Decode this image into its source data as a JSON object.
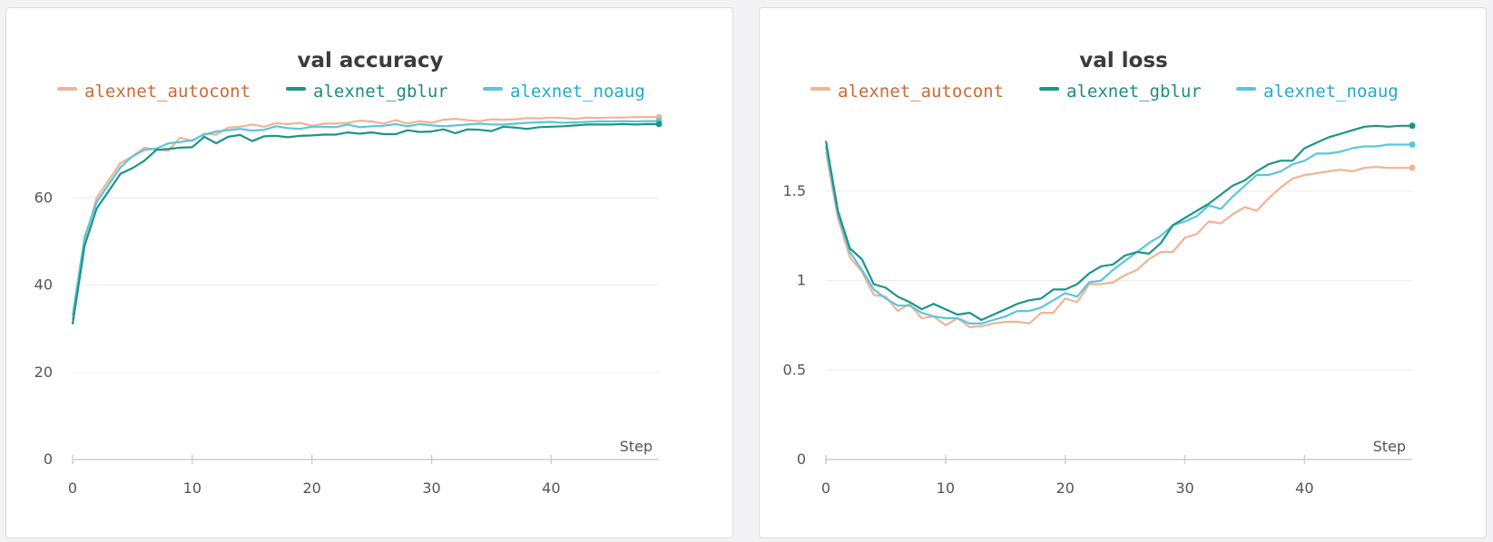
{
  "colors": {
    "alexnet_autocont": "#f2b394",
    "alexnet_gblur": "#1e9584",
    "alexnet_noaug": "#5ac6dd",
    "legend_text_autocont": "#cc6a33",
    "legend_text_gblur": "#1e8c7c",
    "legend_text_noaug": "#26a9cc",
    "grid": "#ececee",
    "axis": "#cfcfd4"
  },
  "chart_data": [
    {
      "type": "line",
      "title": "val accuracy",
      "xlabel": "Step",
      "ylabel": "",
      "xlim": [
        0,
        49
      ],
      "ylim": [
        0,
        80
      ],
      "x_ticks": [
        0,
        10,
        20,
        30,
        40
      ],
      "y_ticks": [
        0,
        20,
        40,
        60
      ],
      "grid": true,
      "legend_position": "top",
      "x": [
        0,
        1,
        2,
        3,
        4,
        5,
        6,
        7,
        8,
        9,
        10,
        11,
        12,
        13,
        14,
        15,
        16,
        17,
        18,
        19,
        20,
        21,
        22,
        23,
        24,
        25,
        26,
        27,
        28,
        29,
        30,
        31,
        32,
        33,
        34,
        35,
        36,
        37,
        38,
        39,
        40,
        41,
        42,
        43,
        44,
        45,
        46,
        47,
        48,
        49
      ],
      "series": [
        {
          "name": "alexnet_autocont",
          "color_key": "alexnet_autocont",
          "values": [
            32,
            50,
            60,
            64,
            68,
            69.5,
            71.5,
            71,
            70.8,
            73.8,
            73,
            74.7,
            74.5,
            76.1,
            76.3,
            76.8,
            76.3,
            77.1,
            76.9,
            77.2,
            76.5,
            77,
            77,
            77.2,
            77.7,
            77.5,
            77,
            77.8,
            77,
            77.6,
            77.2,
            77.9,
            78.1,
            77.8,
            77.6,
            78,
            77.9,
            78,
            78.3,
            78.2,
            78.4,
            78.3,
            78.1,
            78.4,
            78.3,
            78.4,
            78.4,
            78.5,
            78.5,
            78.5
          ]
        },
        {
          "name": "alexnet_gblur",
          "color_key": "alexnet_gblur",
          "values": [
            31,
            49,
            57.5,
            61.5,
            65.5,
            66.8,
            68.5,
            71,
            71.2,
            71.5,
            71.6,
            74,
            72.5,
            74,
            74.4,
            73,
            74.1,
            74.2,
            73.9,
            74.2,
            74.3,
            74.5,
            74.5,
            75,
            74.7,
            75,
            74.6,
            74.6,
            75.5,
            75.1,
            75.2,
            75.7,
            74.8,
            75.7,
            75.6,
            75.3,
            76.3,
            76.1,
            75.8,
            76.2,
            76.3,
            76.4,
            76.6,
            76.8,
            76.8,
            76.8,
            76.9,
            76.8,
            76.9,
            76.9
          ]
        },
        {
          "name": "alexnet_noaug",
          "color_key": "alexnet_noaug",
          "values": [
            33,
            51,
            59,
            63,
            67,
            69.5,
            71,
            71.3,
            72.5,
            72.8,
            73.2,
            74.5,
            75.2,
            75.5,
            75.8,
            75.4,
            75.6,
            76.4,
            76,
            75.8,
            76.3,
            76.3,
            76.2,
            76.8,
            76.2,
            76.4,
            76.5,
            76.9,
            76.4,
            76.9,
            76.6,
            76.4,
            76.6,
            76.8,
            77,
            76.8,
            76.8,
            77,
            77.2,
            77.3,
            77.4,
            77.2,
            77.3,
            77.4,
            77.5,
            77.5,
            77.6,
            77.5,
            77.6,
            77.6
          ]
        }
      ]
    },
    {
      "type": "line",
      "title": "val loss",
      "xlabel": "Step",
      "ylabel": "",
      "xlim": [
        0,
        49
      ],
      "ylim": [
        0,
        1.95
      ],
      "x_ticks": [
        0,
        10,
        20,
        30,
        40
      ],
      "y_ticks": [
        0,
        0.5,
        1,
        1.5
      ],
      "y_tick_labels": [
        "0",
        "0.5",
        "1",
        "1.5"
      ],
      "grid": true,
      "legend_position": "top",
      "x": [
        0,
        1,
        2,
        3,
        4,
        5,
        6,
        7,
        8,
        9,
        10,
        11,
        12,
        13,
        14,
        15,
        16,
        17,
        18,
        19,
        20,
        21,
        22,
        23,
        24,
        25,
        26,
        27,
        28,
        29,
        30,
        31,
        32,
        33,
        34,
        35,
        36,
        37,
        38,
        39,
        40,
        41,
        42,
        43,
        44,
        45,
        46,
        47,
        48,
        49
      ],
      "series": [
        {
          "name": "alexnet_autocont",
          "color_key": "alexnet_autocont",
          "values": [
            1.72,
            1.35,
            1.13,
            1.05,
            0.92,
            0.91,
            0.83,
            0.87,
            0.79,
            0.8,
            0.75,
            0.79,
            0.74,
            0.745,
            0.76,
            0.77,
            0.77,
            0.76,
            0.82,
            0.82,
            0.9,
            0.88,
            0.98,
            0.98,
            0.99,
            1.03,
            1.06,
            1.12,
            1.16,
            1.16,
            1.24,
            1.26,
            1.33,
            1.32,
            1.37,
            1.41,
            1.39,
            1.46,
            1.52,
            1.57,
            1.59,
            1.6,
            1.61,
            1.62,
            1.61,
            1.63,
            1.635,
            1.63,
            1.63,
            1.63
          ]
        },
        {
          "name": "alexnet_gblur",
          "color_key": "alexnet_gblur",
          "values": [
            1.78,
            1.39,
            1.18,
            1.12,
            0.98,
            0.96,
            0.91,
            0.88,
            0.84,
            0.87,
            0.84,
            0.81,
            0.82,
            0.78,
            0.81,
            0.84,
            0.87,
            0.89,
            0.9,
            0.95,
            0.95,
            0.98,
            1.04,
            1.08,
            1.09,
            1.14,
            1.16,
            1.15,
            1.21,
            1.31,
            1.35,
            1.39,
            1.43,
            1.48,
            1.53,
            1.56,
            1.61,
            1.65,
            1.67,
            1.67,
            1.74,
            1.77,
            1.8,
            1.82,
            1.84,
            1.86,
            1.865,
            1.86,
            1.865,
            1.865
          ]
        },
        {
          "name": "alexnet_noaug",
          "color_key": "alexnet_noaug",
          "values": [
            1.75,
            1.37,
            1.16,
            1.06,
            0.95,
            0.9,
            0.86,
            0.86,
            0.82,
            0.8,
            0.79,
            0.79,
            0.76,
            0.76,
            0.78,
            0.8,
            0.83,
            0.83,
            0.85,
            0.89,
            0.93,
            0.91,
            0.99,
            1.0,
            1.06,
            1.11,
            1.16,
            1.21,
            1.25,
            1.31,
            1.33,
            1.36,
            1.42,
            1.4,
            1.47,
            1.53,
            1.59,
            1.59,
            1.61,
            1.65,
            1.67,
            1.71,
            1.71,
            1.72,
            1.74,
            1.75,
            1.75,
            1.76,
            1.76,
            1.76
          ]
        }
      ]
    }
  ]
}
